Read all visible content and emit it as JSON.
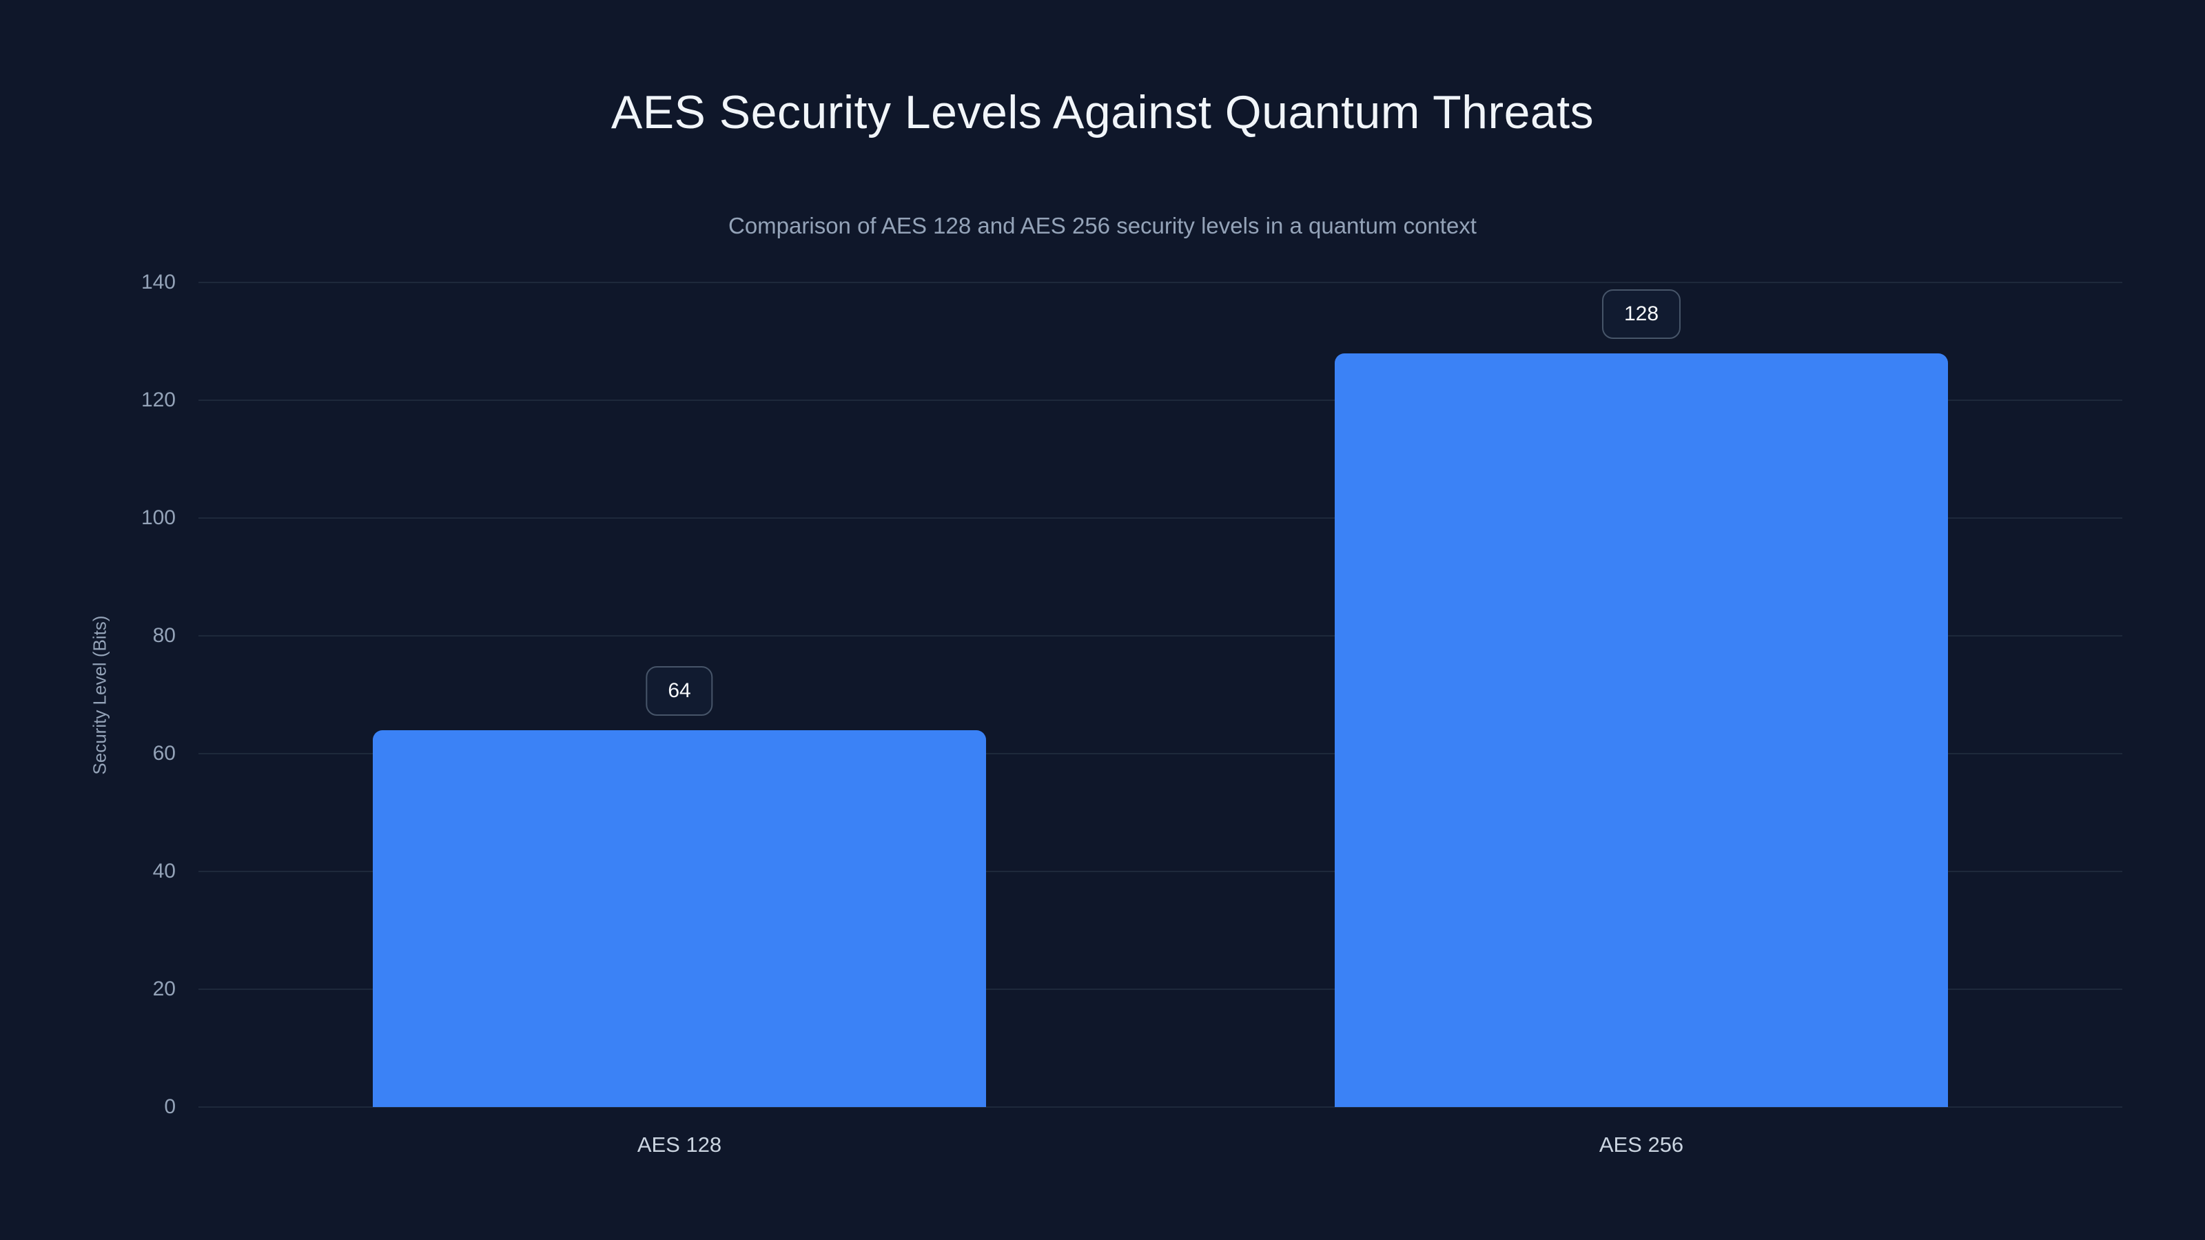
{
  "chart_data": {
    "type": "bar",
    "title": "AES Security Levels Against Quantum Threats",
    "subtitle": "Comparison of AES 128 and AES 256 security levels in a quantum context",
    "categories": [
      "AES 128",
      "AES 256"
    ],
    "values": [
      64,
      128
    ],
    "data_labels": [
      "64",
      "128"
    ],
    "xlabel": "",
    "ylabel": "Security Level (Bits)",
    "ylim": [
      0,
      140
    ],
    "yticks": [
      0,
      20,
      40,
      60,
      80,
      100,
      120,
      140
    ],
    "grid": "horizontal",
    "legend": "none",
    "colors": {
      "background": "#0f172a",
      "bar": "#3b82f6",
      "gridline": "#1e293b",
      "title": "#f1f5f9",
      "subtitle": "#94a3b8",
      "axis_title": "#94a3b8",
      "tick_label": "#94a3b8",
      "category_label": "#cbd5e1",
      "badge_background": "#111b30",
      "badge_border": "#475569",
      "badge_text": "#f8fafc"
    }
  }
}
